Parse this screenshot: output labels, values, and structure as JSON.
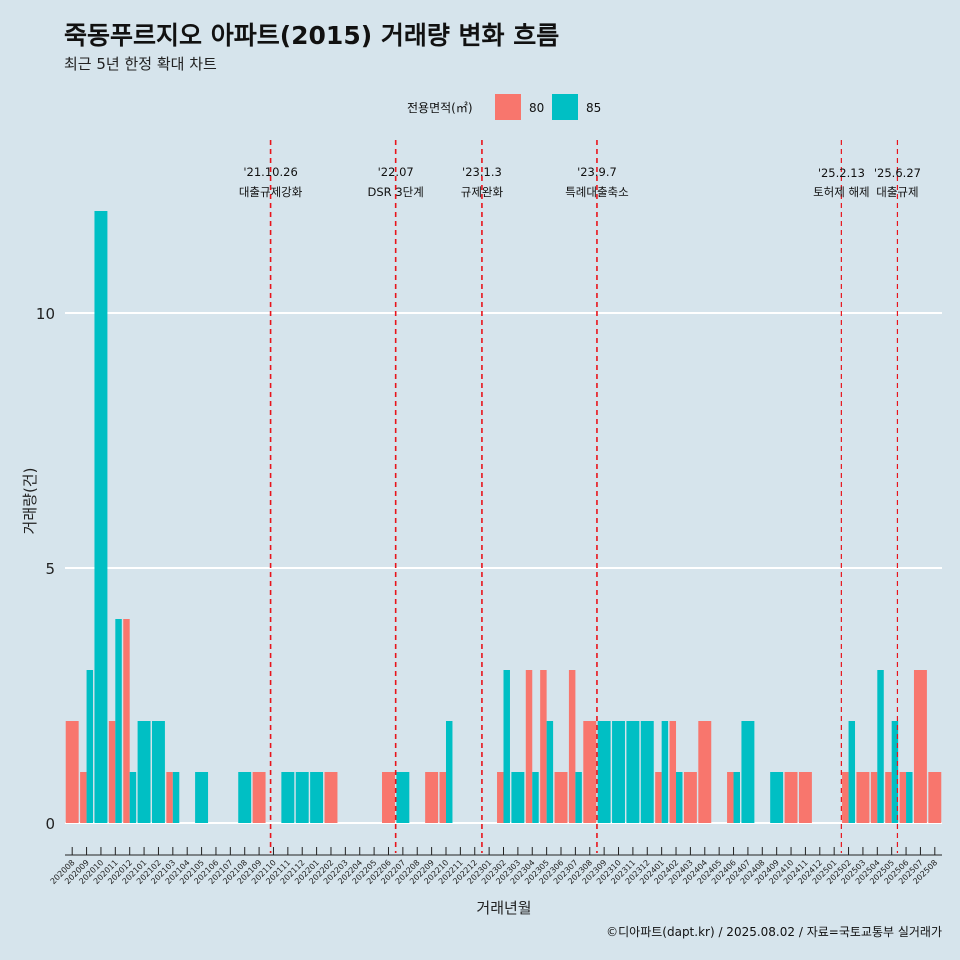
{
  "chart_data": {
    "type": "bar",
    "title": "죽동푸르지오 아파트(2015) 거래량 변화 흐름",
    "subtitle": "최근 5년 한정 확대 차트",
    "xlabel": "거래년월",
    "ylabel": "거래량(건)",
    "caption": "©디아파트(dapt.kr) / 2025.08.02 / 자료=국토교통부 실거래가",
    "ylim": [
      -0.5,
      13
    ],
    "yticks": [
      0,
      5,
      10
    ],
    "ytick_labels": [
      "0",
      "5",
      "10"
    ],
    "grid": true,
    "legend": {
      "title": "전용면적(㎡)",
      "position": "top",
      "items": [
        {
          "label": "80",
          "color": "#f8766d"
        },
        {
          "label": "85",
          "color": "#00bfc4"
        }
      ]
    },
    "categories": [
      "202008",
      "202009",
      "202010",
      "202011",
      "202012",
      "202101",
      "202102",
      "202103",
      "202104",
      "202105",
      "202106",
      "202107",
      "202108",
      "202109",
      "202110",
      "202111",
      "202112",
      "202201",
      "202202",
      "202203",
      "202204",
      "202205",
      "202206",
      "202207",
      "202208",
      "202209",
      "202210",
      "202211",
      "202212",
      "202301",
      "202302",
      "202303",
      "202304",
      "202305",
      "202306",
      "202307",
      "202308",
      "202309",
      "202310",
      "202311",
      "202312",
      "202401",
      "202402",
      "202403",
      "202404",
      "202405",
      "202406",
      "202407",
      "202408",
      "202409",
      "202410",
      "202411",
      "202412",
      "202501",
      "202502",
      "202503",
      "202504",
      "202505",
      "202506",
      "202507",
      "202508"
    ],
    "series": [
      {
        "name": "80",
        "color": "#f8766d",
        "values": [
          2,
          1,
          0,
          2,
          4,
          0,
          0,
          1,
          0,
          0,
          0,
          0,
          0,
          1,
          0,
          0,
          0,
          0,
          1,
          0,
          0,
          0,
          1,
          0,
          0,
          1,
          1,
          0,
          0,
          0,
          1,
          0,
          3,
          3,
          1,
          3,
          2,
          0,
          0,
          0,
          0,
          1,
          2,
          1,
          2,
          0,
          1,
          0,
          0,
          0,
          1,
          1,
          0,
          0,
          1,
          1,
          1,
          1,
          1,
          3,
          1
        ]
      },
      {
        "name": "85",
        "color": "#00bfc4",
        "values": [
          0,
          3,
          12,
          4,
          1,
          2,
          2,
          1,
          0,
          1,
          0,
          0,
          1,
          0,
          0,
          1,
          1,
          1,
          0,
          0,
          0,
          0,
          0,
          1,
          0,
          0,
          2,
          0,
          0,
          0,
          3,
          1,
          1,
          2,
          0,
          1,
          0,
          2,
          2,
          2,
          2,
          2,
          1,
          0,
          0,
          0,
          1,
          2,
          0,
          1,
          0,
          0,
          0,
          0,
          2,
          0,
          3,
          2,
          1,
          0,
          0
        ]
      }
    ],
    "events": [
      {
        "date": "'21.10.26",
        "label": "대출규제강화",
        "x_index": 14.3
      },
      {
        "date": "'22.07",
        "label": "DSR 3단계",
        "x_index": 23.0
      },
      {
        "date": "'23.1.3",
        "label": "규제완화",
        "x_index": 29.0
      },
      {
        "date": "'23.9.7",
        "label": "특례대출축소",
        "x_index": 37.0
      },
      {
        "date": "'25.2.13",
        "label": "토허제 해제",
        "x_index": 54.0
      },
      {
        "date": "'25.6.27",
        "label": "대출규제",
        "x_index": 57.9
      }
    ]
  }
}
